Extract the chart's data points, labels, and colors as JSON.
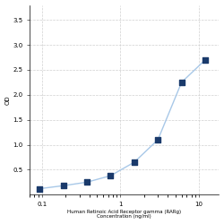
{
  "x": [
    0.094,
    0.188,
    0.375,
    0.75,
    1.5,
    3.0,
    6.0,
    12.0
  ],
  "y": [
    0.12,
    0.18,
    0.25,
    0.38,
    0.65,
    1.1,
    2.25,
    2.7
  ],
  "xlabel_line1": "Human Retinoic Acid Receptor gamma (RARg)",
  "xlabel_line2": "Concentration (ng/ml)",
  "ylabel": "OD",
  "ylim": [
    0,
    3.8
  ],
  "yticks": [
    0.5,
    1.0,
    1.5,
    2.0,
    2.5,
    3.0,
    3.5
  ],
  "line_color": "#a8c8e8",
  "marker_color": "#1a3a6b",
  "grid_color": "#d0d0d0",
  "background_color": "#ffffff",
  "marker_size": 4,
  "line_width": 1.0,
  "tick_fontsize": 5,
  "xlabel_fontsize": 4,
  "ylabel_fontsize": 5
}
